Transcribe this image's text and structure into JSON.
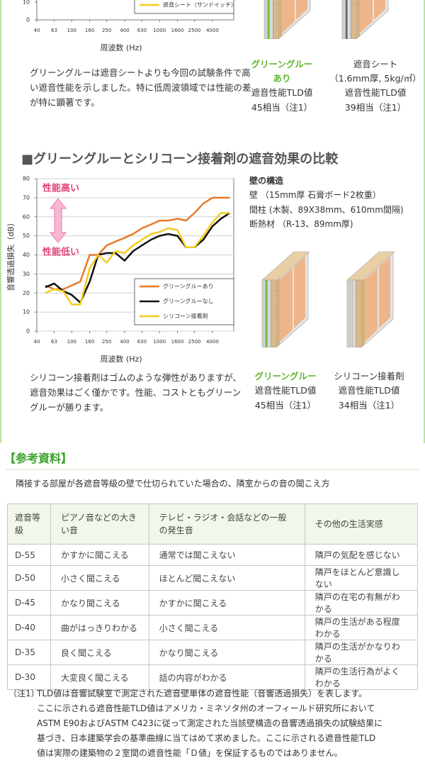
{
  "chart_data": [
    {
      "type": "line",
      "ylim": [
        0,
        80
      ],
      "yticks": [
        0,
        10
      ],
      "xscale": "log",
      "xlim": [
        40,
        7000
      ],
      "xticks": [
        40,
        63,
        100,
        160,
        250,
        400,
        630,
        1000,
        1600,
        2500,
        4000
      ],
      "xlabel": "周波数 (Hz)",
      "legend": "lower right",
      "legend_items": [
        {
          "name": "遮音シート（サンドイッチ）",
          "color": "#f2cc1d"
        }
      ]
    },
    {
      "type": "line",
      "ylim": [
        0,
        80
      ],
      "yticks": [
        0,
        10,
        20,
        30,
        40,
        50,
        60,
        70,
        80
      ],
      "xscale": "log",
      "xlim": [
        40,
        7000
      ],
      "xticks": [
        40,
        63,
        100,
        160,
        250,
        400,
        630,
        1000,
        1600,
        2500,
        4000
      ],
      "x": [
        50,
        63,
        80,
        100,
        125,
        160,
        200,
        250,
        315,
        400,
        500,
        630,
        800,
        1000,
        1250,
        1600,
        2000,
        2500,
        3150,
        4000,
        5000,
        6300
      ],
      "xlabel": "周波数 (Hz)",
      "ylabel": "音響透過損失（dB）",
      "grid": true,
      "legend": "lower right",
      "annotations": [
        "性能高い",
        "性能低い"
      ],
      "series": [
        {
          "name": "グリーングルーあり",
          "color": "#e8792b",
          "values": [
            24,
            22,
            22,
            24,
            26,
            40,
            40,
            45,
            47,
            49,
            51,
            54,
            56,
            58,
            58,
            59,
            58,
            62,
            67,
            70,
            70,
            70
          ]
        },
        {
          "name": "グリーングルーなし",
          "color": "#111111",
          "values": [
            23,
            25,
            21,
            19,
            15,
            26,
            40,
            41,
            41,
            37,
            42,
            45,
            48,
            50,
            51,
            50,
            44,
            44,
            48,
            55,
            59,
            62
          ]
        },
        {
          "name": "シリコーン接着剤",
          "color": "#f2cc1d",
          "values": [
            20,
            22,
            21,
            14,
            14,
            33,
            40,
            36,
            42,
            41,
            45,
            48,
            51,
            52,
            54,
            53,
            44,
            44,
            50,
            57,
            62,
            62
          ]
        }
      ]
    }
  ],
  "section1": {
    "paragraph": "グリーングルーは遮音シートよりも今回の試験条件で高い遮音性能を示しました。特に低周波領域では性能の差が特に顕著です。",
    "captions": [
      {
        "name": [
          "グリーングルー",
          "あり"
        ],
        "lines": [
          "遮音性能TLD値",
          "45相当（注1）"
        ]
      },
      {
        "name": [
          "遮音シート"
        ],
        "lines": [
          "（1.6mm厚, 5kg/㎡）",
          "遮音性能TLD値",
          "39相当（注1）"
        ]
      }
    ]
  },
  "section2": {
    "title": "■グリーングルーとシリコーン接着剤の遮音効果の比較",
    "structure_title": "壁の構造",
    "structure_lines": [
      "壁 （15mm厚 石膏ボード2枚重）",
      "間柱 (木製、89X38mm、610mm間隔)",
      "断熱材 （R-13、89mm厚)"
    ],
    "captions": [
      {
        "name": "グリーングルー",
        "lines": [
          "遮音性能TLD値",
          "45相当（注1）"
        ]
      },
      {
        "name": "シリコーン接着剤",
        "lines": [
          "遮音性能TLD値",
          "34相当（注1）"
        ]
      }
    ],
    "paragraph": "シリコーン接着剤はゴムのような弾性がありますが、遮音効果はごく僅かです。性能、コストともグリーングルーが勝ります。"
  },
  "reference": {
    "title": "【参考資料】",
    "subtitle": "隣接する部屋が各遮音等級の壁で仕切られていた場合の、隣室からの音の聞こえ方",
    "table": {
      "header": [
        "遮音等級",
        "ピアノ音などの大きい音",
        "テレビ・ラジオ・会話などの一般の発生音",
        "その他の生活実感"
      ],
      "rows": [
        [
          "D-55",
          "かすかに聞こえる",
          "通常では聞こえない",
          "隣戸の気配を感じない"
        ],
        [
          "D-50",
          "小さく聞こえる",
          "ほとんど聞こえない",
          "隣戸をほとんど意識しない"
        ],
        [
          "D-45",
          "かなり聞こえる",
          "かすかに聞こえる",
          "隣戸の在宅の有無がわかる"
        ],
        [
          "D-40",
          "曲がはっきりわかる",
          "小さく聞こえる",
          "隣戸の生活がある程度わかる"
        ],
        [
          "D-35",
          "良く聞こえる",
          "かなり聞こえる",
          "隣戸の生活がかなりわかる"
        ],
        [
          "D-30",
          "大変良く聞こえる",
          "話の内容がわかる",
          "隣戸の生活行為がよくわかる"
        ]
      ]
    },
    "note_label": "（注1）",
    "note_lines": [
      "TLD値は音響試験室で測定された遮音壁単体の遮音性能（音響透過損失）を表します。",
      "ここに示される遮音性能TLD値はアメリカ・ミネソタ州のオーフィールド研究所において",
      "ASTM E90およびASTM C423に従って測定された当該壁構造の音響透過損失の試験結果に",
      "基づき、日本建築学会の基準曲線に当てはめて求めました。ここに示される遮音性能TLD",
      "値は実際の建築物の２室間の遮音性能「Ｄ値」を保証するものではありません。"
    ]
  }
}
